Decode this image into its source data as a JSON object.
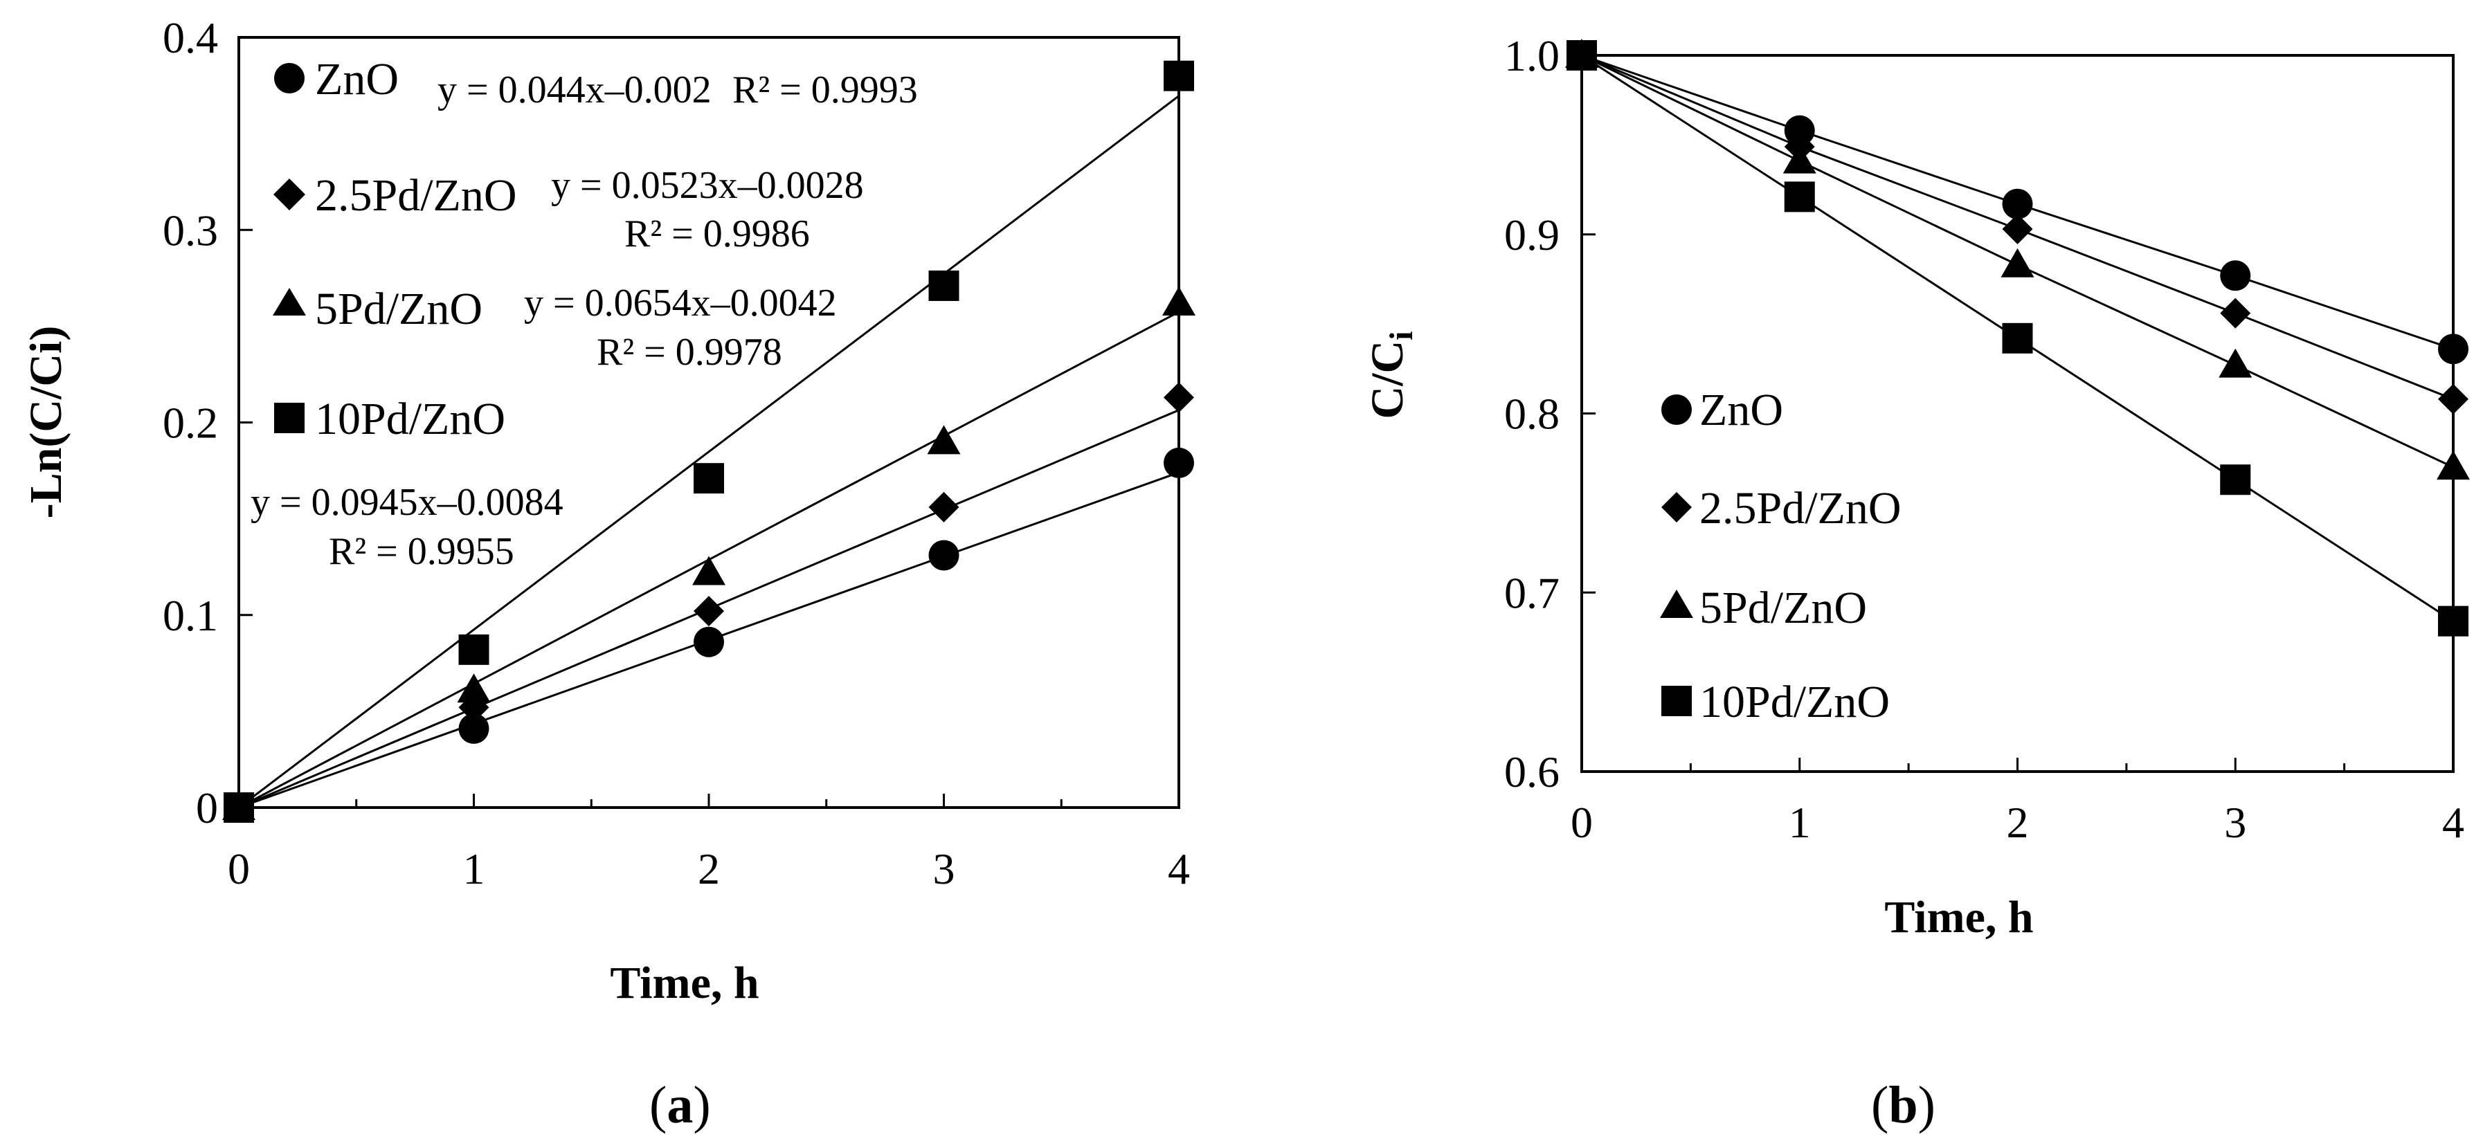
{
  "chart_data": [
    {
      "panel": "a",
      "type": "scatter",
      "panel_label": "(a)",
      "panel_label_parts": {
        "open": "(",
        "letter": "a",
        "close": ")"
      },
      "xlabel": "Time, h",
      "ylabel": "-Ln(C/Ci)",
      "xlim": [
        0,
        4
      ],
      "ylim": [
        0,
        0.4
      ],
      "x_ticks": [
        "0",
        "1",
        "2",
        "3",
        "4"
      ],
      "y_ticks": [
        "0",
        "0.1",
        "0.2",
        "0.3",
        "0.4"
      ],
      "x": [
        0,
        1,
        2,
        3,
        4
      ],
      "series": [
        {
          "name": "ZnO",
          "marker": "circle",
          "values": [
            0,
            0.041,
            0.086,
            0.131,
            0.179
          ],
          "trendline": {
            "slope": 0.044,
            "intercept": -0.002
          },
          "equation": "y = 0.044x–0.002",
          "r2": "R² = 0.9993"
        },
        {
          "name": "2.5Pd/ZnO",
          "marker": "diamond",
          "values": [
            0,
            0.052,
            0.102,
            0.156,
            0.213
          ],
          "trendline": {
            "slope": 0.0523,
            "intercept": -0.0028
          },
          "equation": "y = 0.0523x–0.0028",
          "r2": "R² = 0.9986"
        },
        {
          "name": "5Pd/ZnO",
          "marker": "triangle",
          "values": [
            0,
            0.061,
            0.122,
            0.19,
            0.262
          ],
          "trendline": {
            "slope": 0.0654,
            "intercept": -0.0042
          },
          "equation": "y = 0.0654x–0.0042",
          "r2": "R² = 0.9978"
        },
        {
          "name": "10Pd/ZnO",
          "marker": "square",
          "values": [
            0,
            0.082,
            0.171,
            0.271,
            0.38
          ],
          "trendline": {
            "slope": 0.0945,
            "intercept": -0.0084
          },
          "equation": "y = 0.0945x–0.0084",
          "r2": "R² = 0.9955"
        }
      ]
    },
    {
      "panel": "b",
      "type": "line",
      "panel_label": "(b)",
      "panel_label_parts": {
        "open": "(",
        "letter": "b",
        "close": ")"
      },
      "xlabel": "Time, h",
      "ylabel": "C/Ci",
      "ylabel_parts": {
        "main": "C/C",
        "sub": "i"
      },
      "xlim": [
        0,
        4
      ],
      "ylim": [
        0.6,
        1.0
      ],
      "x_ticks": [
        "0",
        "1",
        "2",
        "3",
        "4"
      ],
      "y_ticks": [
        "0.6",
        "0.7",
        "0.8",
        "0.9",
        "1.0"
      ],
      "x": [
        0,
        1,
        2,
        3,
        4
      ],
      "series": [
        {
          "name": "ZnO",
          "marker": "circle",
          "values": [
            1.0,
            0.958,
            0.917,
            0.877,
            0.836
          ]
        },
        {
          "name": "2.5Pd/ZnO",
          "marker": "diamond",
          "values": [
            1.0,
            0.949,
            0.903,
            0.856,
            0.808
          ]
        },
        {
          "name": "5Pd/ZnO",
          "marker": "triangle",
          "values": [
            1.0,
            0.941,
            0.883,
            0.827,
            0.77
          ]
        },
        {
          "name": "10Pd/ZnO",
          "marker": "square",
          "values": [
            1.0,
            0.921,
            0.842,
            0.763,
            0.684
          ]
        }
      ]
    }
  ]
}
